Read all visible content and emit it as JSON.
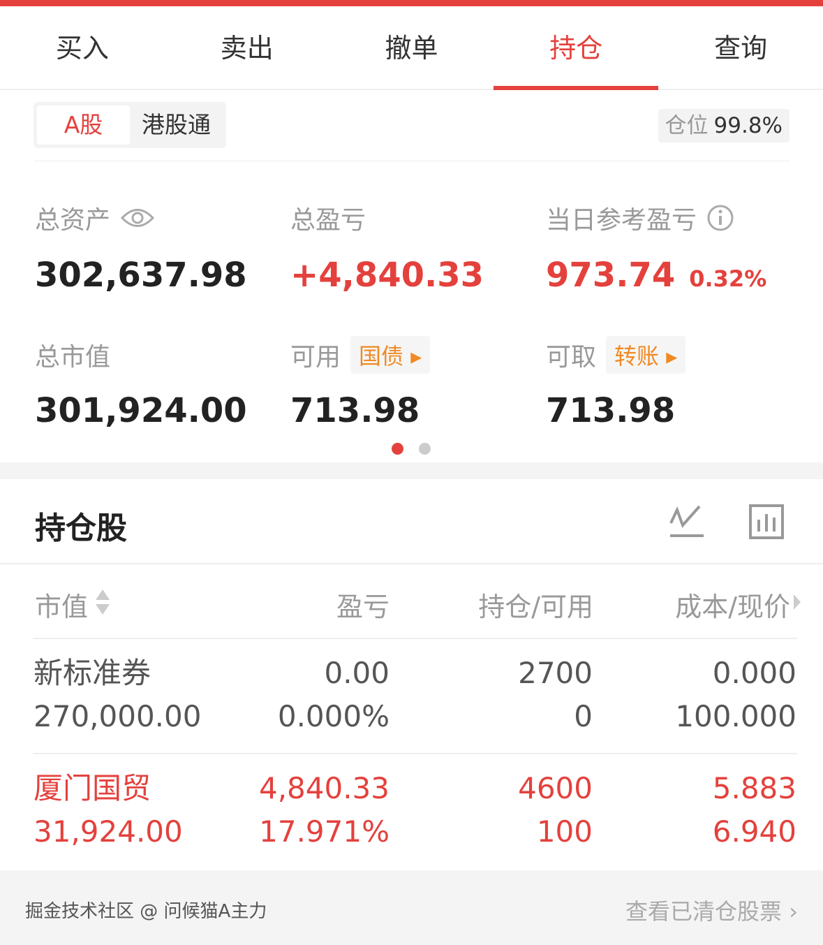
{
  "tabs": [
    {
      "label": "买入"
    },
    {
      "label": "卖出"
    },
    {
      "label": "撤单"
    },
    {
      "label": "持仓",
      "active": true
    },
    {
      "label": "查询"
    }
  ],
  "market": {
    "options": [
      "A股",
      "港股通"
    ],
    "selected": "A股"
  },
  "position": {
    "label": "仓位",
    "value": "99.8%"
  },
  "summary": {
    "total_assets": {
      "label": "总资产",
      "value": "302,637.98"
    },
    "total_pnl": {
      "label": "总盈亏",
      "value": "+4,840.33"
    },
    "daily_pnl": {
      "label": "当日参考盈亏",
      "value": "973.74",
      "pct": "0.32%"
    },
    "market_value": {
      "label": "总市值",
      "value": "301,924.00"
    },
    "available": {
      "label": "可用",
      "tag": "国债",
      "value": "713.98"
    },
    "withdrawable": {
      "label": "可取",
      "tag": "转账",
      "value": "713.98"
    }
  },
  "pager": {
    "pages": 2,
    "current": 1
  },
  "holdings": {
    "title": "持仓股",
    "columns": [
      "市值",
      "盈亏",
      "持仓/可用",
      "成本/现价"
    ],
    "rows": [
      {
        "name": "新标准券",
        "mv": "270,000.00",
        "pnl": "0.00",
        "pnl_pct": "0.000%",
        "qty": "2700",
        "avail": "0",
        "cost": "0.000",
        "price": "100.000"
      },
      {
        "name": "厦门国贸",
        "mv": "31,924.00",
        "pnl": "4,840.33",
        "pnl_pct": "17.971%",
        "qty": "4600",
        "avail": "100",
        "cost": "5.883",
        "price": "6.940"
      }
    ]
  },
  "footer": {
    "link": "查看已清仓股票",
    "watermark": "掘金技术社区 @ 问候猫A主力"
  },
  "colors": {
    "accent": "#e4413d",
    "tag": "#f08a24"
  }
}
